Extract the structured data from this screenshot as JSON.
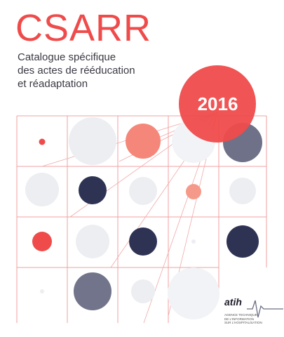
{
  "cover": {
    "title": "CSARR",
    "subtitle_lines": [
      "Catalogue spécifique",
      "des actes de rééducation",
      "et réadaptation"
    ],
    "year": "2016"
  },
  "publisher": {
    "logo_word": "atih",
    "tagline_lines": [
      "AGENCE TECHNIQUE",
      "DE L'INFORMATION",
      "SUR L'HOSPITALISATION"
    ],
    "logo_icon": "heartbeat-line-icon"
  },
  "colors": {
    "accent_red": "#ef4b4b",
    "light_red": "#f59a8a",
    "navy": "#2e3354",
    "grey": "#62657e",
    "pale": "#eceef2",
    "grid_line": "#f0a0a0"
  }
}
